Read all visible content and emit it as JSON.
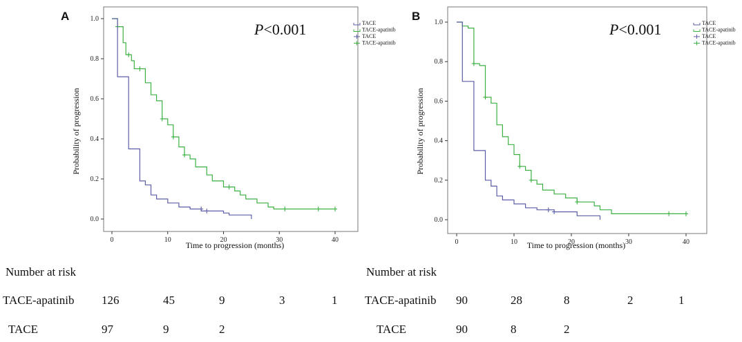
{
  "colors": {
    "tace": "#5b5ea6",
    "apatinib": "#3cb043",
    "axis": "#333333",
    "frame": "#555555"
  },
  "chart_data": [
    {
      "panel": "A",
      "type": "line",
      "subtype": "kaplan-meier",
      "title": "",
      "pvalue": "P<0.001",
      "xlabel": "Time to progression (months)",
      "ylabel": "Probability of progression",
      "xlim": [
        0,
        40
      ],
      "ylim": [
        0,
        1.0
      ],
      "xticks": [
        "0",
        "10",
        "20",
        "30",
        "40"
      ],
      "yticks": [
        "0.0",
        "0.2",
        "0.4",
        "0.6",
        "0.8",
        "1.0"
      ],
      "legend": [
        "TACE",
        "TACE-apatinib",
        "TACE",
        "TACE-apatinib"
      ],
      "series": [
        {
          "name": "TACE-apatinib",
          "color_key": "apatinib",
          "points": [
            [
              0,
              1.0
            ],
            [
              1,
              1.0
            ],
            [
              1,
              0.96
            ],
            [
              2,
              0.96
            ],
            [
              2,
              0.88
            ],
            [
              2.5,
              0.88
            ],
            [
              2.5,
              0.82
            ],
            [
              3.5,
              0.82
            ],
            [
              3.5,
              0.79
            ],
            [
              4,
              0.79
            ],
            [
              4,
              0.75
            ],
            [
              6,
              0.75
            ],
            [
              6,
              0.68
            ],
            [
              7,
              0.68
            ],
            [
              7,
              0.62
            ],
            [
              8,
              0.62
            ],
            [
              8,
              0.59
            ],
            [
              9,
              0.59
            ],
            [
              9,
              0.5
            ],
            [
              10,
              0.5
            ],
            [
              10,
              0.47
            ],
            [
              11,
              0.47
            ],
            [
              11,
              0.41
            ],
            [
              12,
              0.41
            ],
            [
              12,
              0.36
            ],
            [
              13,
              0.36
            ],
            [
              13,
              0.32
            ],
            [
              14,
              0.32
            ],
            [
              14,
              0.3
            ],
            [
              15,
              0.3
            ],
            [
              15,
              0.26
            ],
            [
              17,
              0.26
            ],
            [
              17,
              0.22
            ],
            [
              18,
              0.22
            ],
            [
              18,
              0.19
            ],
            [
              20,
              0.19
            ],
            [
              20,
              0.16
            ],
            [
              22,
              0.16
            ],
            [
              22,
              0.14
            ],
            [
              23,
              0.14
            ],
            [
              23,
              0.12
            ],
            [
              24,
              0.12
            ],
            [
              24,
              0.1
            ],
            [
              26,
              0.1
            ],
            [
              26,
              0.08
            ],
            [
              28,
              0.08
            ],
            [
              28,
              0.06
            ],
            [
              29,
              0.06
            ],
            [
              29,
              0.05
            ],
            [
              40,
              0.05
            ]
          ],
          "censored": [
            [
              1,
              0.96
            ],
            [
              3,
              0.82
            ],
            [
              5,
              0.75
            ],
            [
              9,
              0.5
            ],
            [
              11,
              0.41
            ],
            [
              13,
              0.32
            ],
            [
              21,
              0.16
            ],
            [
              31,
              0.05
            ],
            [
              37,
              0.05
            ],
            [
              40,
              0.05
            ]
          ]
        },
        {
          "name": "TACE",
          "color_key": "tace",
          "points": [
            [
              0,
              1.0
            ],
            [
              1,
              1.0
            ],
            [
              1,
              0.71
            ],
            [
              3,
              0.71
            ],
            [
              3,
              0.35
            ],
            [
              5,
              0.35
            ],
            [
              5,
              0.19
            ],
            [
              6,
              0.19
            ],
            [
              6,
              0.17
            ],
            [
              7,
              0.17
            ],
            [
              7,
              0.12
            ],
            [
              8,
              0.12
            ],
            [
              8,
              0.1
            ],
            [
              10,
              0.1
            ],
            [
              10,
              0.08
            ],
            [
              12,
              0.08
            ],
            [
              12,
              0.06
            ],
            [
              14,
              0.06
            ],
            [
              14,
              0.05
            ],
            [
              16,
              0.05
            ],
            [
              16,
              0.04
            ],
            [
              20,
              0.04
            ],
            [
              20,
              0.03
            ],
            [
              21,
              0.03
            ],
            [
              21,
              0.02
            ],
            [
              25,
              0.02
            ],
            [
              25,
              0.0
            ]
          ],
          "censored": [
            [
              16,
              0.05
            ],
            [
              17,
              0.04
            ]
          ]
        }
      ]
    },
    {
      "panel": "B",
      "type": "line",
      "subtype": "kaplan-meier",
      "title": "",
      "pvalue": "P<0.001",
      "xlabel": "Time to progression (months)",
      "ylabel": "Probability of progression",
      "xlim": [
        0,
        40
      ],
      "ylim": [
        0,
        1.0
      ],
      "xticks": [
        "0",
        "10",
        "20",
        "30",
        "40"
      ],
      "yticks": [
        "0.0",
        "0.2",
        "0.4",
        "0.6",
        "0.8",
        "1.0"
      ],
      "legend": [
        "TACE",
        "TACE-apatinib",
        "TACE",
        "TACE-apatinib"
      ],
      "series": [
        {
          "name": "TACE-apatinib",
          "color_key": "apatinib",
          "points": [
            [
              0,
              1.0
            ],
            [
              1,
              1.0
            ],
            [
              1,
              0.98
            ],
            [
              2,
              0.98
            ],
            [
              2,
              0.97
            ],
            [
              3,
              0.97
            ],
            [
              3,
              0.79
            ],
            [
              4,
              0.79
            ],
            [
              4,
              0.78
            ],
            [
              5,
              0.78
            ],
            [
              5,
              0.62
            ],
            [
              6,
              0.62
            ],
            [
              6,
              0.59
            ],
            [
              7,
              0.59
            ],
            [
              7,
              0.48
            ],
            [
              8,
              0.48
            ],
            [
              8,
              0.42
            ],
            [
              9,
              0.42
            ],
            [
              9,
              0.38
            ],
            [
              10,
              0.38
            ],
            [
              10,
              0.33
            ],
            [
              11,
              0.33
            ],
            [
              11,
              0.27
            ],
            [
              12,
              0.27
            ],
            [
              12,
              0.25
            ],
            [
              13,
              0.25
            ],
            [
              13,
              0.2
            ],
            [
              14,
              0.2
            ],
            [
              14,
              0.18
            ],
            [
              15,
              0.18
            ],
            [
              15,
              0.15
            ],
            [
              17,
              0.15
            ],
            [
              17,
              0.13
            ],
            [
              19,
              0.13
            ],
            [
              19,
              0.11
            ],
            [
              21,
              0.11
            ],
            [
              21,
              0.09
            ],
            [
              24,
              0.09
            ],
            [
              24,
              0.07
            ],
            [
              25,
              0.07
            ],
            [
              25,
              0.05
            ],
            [
              27,
              0.05
            ],
            [
              27,
              0.03
            ],
            [
              40,
              0.03
            ]
          ],
          "censored": [
            [
              3,
              0.79
            ],
            [
              5,
              0.62
            ],
            [
              11,
              0.27
            ],
            [
              13,
              0.2
            ],
            [
              21,
              0.09
            ],
            [
              37,
              0.03
            ],
            [
              40,
              0.03
            ]
          ]
        },
        {
          "name": "TACE",
          "color_key": "tace",
          "points": [
            [
              0,
              1.0
            ],
            [
              1,
              1.0
            ],
            [
              1,
              0.7
            ],
            [
              3,
              0.7
            ],
            [
              3,
              0.35
            ],
            [
              5,
              0.35
            ],
            [
              5,
              0.2
            ],
            [
              6,
              0.2
            ],
            [
              6,
              0.17
            ],
            [
              7,
              0.17
            ],
            [
              7,
              0.12
            ],
            [
              8,
              0.12
            ],
            [
              8,
              0.1
            ],
            [
              10,
              0.1
            ],
            [
              10,
              0.08
            ],
            [
              12,
              0.08
            ],
            [
              12,
              0.06
            ],
            [
              14,
              0.06
            ],
            [
              14,
              0.05
            ],
            [
              17,
              0.05
            ],
            [
              17,
              0.04
            ],
            [
              21,
              0.04
            ],
            [
              21,
              0.02
            ],
            [
              25,
              0.02
            ],
            [
              25,
              0.0
            ]
          ],
          "censored": [
            [
              16,
              0.05
            ],
            [
              17,
              0.04
            ]
          ]
        }
      ]
    }
  ],
  "risk_tables": [
    {
      "title": "Number at risk",
      "rows": [
        {
          "label": "TACE-apatinib",
          "values": [
            "126",
            "45",
            "9",
            "3",
            "1"
          ]
        },
        {
          "label": "TACE",
          "values": [
            "97",
            "9",
            "2"
          ]
        }
      ]
    },
    {
      "title": "Number at risk",
      "rows": [
        {
          "label": "TACE-apatinib",
          "values": [
            "90",
            "28",
            "8",
            "2",
            "1"
          ]
        },
        {
          "label": "TACE",
          "values": [
            "90",
            "8",
            "2"
          ]
        }
      ]
    }
  ]
}
